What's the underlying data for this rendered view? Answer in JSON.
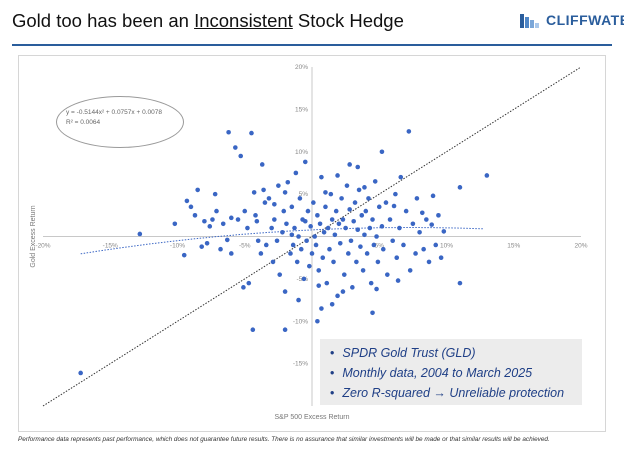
{
  "slide": {
    "title_pre": "Gold too has been an ",
    "title_underlined": "Inconsistent",
    "title_post": " Stock Hedge",
    "logo_text": "CLIFFWATER",
    "logo_icon": "cliffwater-logo-icon",
    "accent_color": "#2a5d9c",
    "point_color": "#3a66c4"
  },
  "callout": {
    "items": [
      "SPDR Gold Trust (GLD)",
      "Monthly data, 2004 to March 2025",
      "Zero R-squared → Unreliable protection"
    ]
  },
  "footnote": "Performance data represents past performance, which does not guarantee future results. There is no assurance that similar investments will be made or that similar results will be achieved.",
  "chart_data": {
    "type": "scatter",
    "xlabel": "S&P 500 Excess Return",
    "ylabel": "Gold Excess Return",
    "xlim": [
      -0.2,
      0.2
    ],
    "ylim": [
      -0.2,
      0.2
    ],
    "x_ticks": [
      -0.2,
      -0.15,
      -0.1,
      -0.05,
      0.05,
      0.1,
      0.15,
      0.2
    ],
    "x_tick_labels": [
      "-20%",
      "-15%",
      "-10%",
      "-5%",
      "5%",
      "10%",
      "15%",
      "20%"
    ],
    "y_ticks": [
      -0.15,
      -0.1,
      -0.05,
      0.05,
      0.1,
      0.15,
      0.2
    ],
    "y_tick_labels": [
      "-15%",
      "-10%",
      "-5%",
      "5%",
      "10%",
      "15%",
      "20%"
    ],
    "grid": false,
    "trendline": {
      "type": "polynomial",
      "a": -0.5144,
      "b": 0.0757,
      "c": 0.0078,
      "equation": "y = -0.5144x² + 0.0757x + 0.0078",
      "r2": "R² = 0.0064",
      "x_range": [
        -0.172,
        0.127
      ]
    },
    "reference_line": {
      "type": "y=x"
    },
    "points": [
      [
        -0.172,
        -0.161
      ],
      [
        -0.128,
        0.003
      ],
      [
        -0.102,
        0.015
      ],
      [
        -0.095,
        -0.022
      ],
      [
        -0.093,
        0.042
      ],
      [
        -0.09,
        0.035
      ],
      [
        -0.087,
        0.025
      ],
      [
        -0.085,
        0.055
      ],
      [
        -0.082,
        -0.012
      ],
      [
        -0.08,
        0.018
      ],
      [
        -0.078,
        -0.008
      ],
      [
        -0.076,
        0.012
      ],
      [
        -0.074,
        0.02
      ],
      [
        -0.071,
        0.03
      ],
      [
        -0.068,
        -0.015
      ],
      [
        -0.066,
        0.015
      ],
      [
        -0.063,
        -0.004
      ],
      [
        -0.062,
        0.123
      ],
      [
        -0.06,
        0.022
      ],
      [
        -0.057,
        0.105
      ],
      [
        -0.055,
        0.02
      ],
      [
        -0.053,
        0.095
      ],
      [
        -0.051,
        -0.06
      ],
      [
        -0.05,
        0.03
      ],
      [
        -0.048,
        0.01
      ],
      [
        -0.047,
        -0.055
      ],
      [
        -0.045,
        0.122
      ],
      [
        -0.044,
        -0.11
      ],
      [
        -0.043,
        0.052
      ],
      [
        -0.042,
        0.025
      ],
      [
        -0.04,
        -0.005
      ],
      [
        -0.038,
        -0.02
      ],
      [
        -0.036,
        0.055
      ],
      [
        -0.035,
        0.04
      ],
      [
        -0.034,
        -0.01
      ],
      [
        -0.032,
        0.045
      ],
      [
        -0.03,
        0.01
      ],
      [
        -0.029,
        -0.03
      ],
      [
        -0.028,
        0.02
      ],
      [
        -0.026,
        -0.005
      ],
      [
        -0.025,
        0.06
      ],
      [
        -0.024,
        -0.045
      ],
      [
        -0.022,
        0.005
      ],
      [
        -0.021,
        0.03
      ],
      [
        -0.02,
        -0.065
      ],
      [
        -0.019,
        0.015
      ],
      [
        -0.018,
        0.064
      ],
      [
        -0.016,
        -0.02
      ],
      [
        -0.015,
        0.035
      ],
      [
        -0.014,
        -0.01
      ],
      [
        -0.013,
        0.01
      ],
      [
        -0.012,
        0.075
      ],
      [
        -0.011,
        -0.03
      ],
      [
        -0.01,
        0.0
      ],
      [
        -0.009,
        0.045
      ],
      [
        -0.008,
        -0.015
      ],
      [
        -0.007,
        0.02
      ],
      [
        -0.006,
        -0.05
      ],
      [
        -0.005,
        0.088
      ],
      [
        -0.004,
        -0.005
      ],
      [
        -0.003,
        0.03
      ],
      [
        -0.002,
        -0.035
      ],
      [
        -0.001,
        0.012
      ],
      [
        0.0,
        -0.02
      ],
      [
        0.001,
        0.04
      ],
      [
        0.002,
        0.0
      ],
      [
        0.003,
        -0.01
      ],
      [
        0.004,
        0.025
      ],
      [
        0.005,
        -0.04
      ],
      [
        0.006,
        0.015
      ],
      [
        0.007,
        0.07
      ],
      [
        0.008,
        -0.025
      ],
      [
        0.009,
        0.005
      ],
      [
        0.01,
        0.035
      ],
      [
        0.011,
        -0.055
      ],
      [
        0.012,
        0.01
      ],
      [
        0.013,
        -0.015
      ],
      [
        0.014,
        0.05
      ],
      [
        0.015,
        0.02
      ],
      [
        0.016,
        -0.03
      ],
      [
        0.017,
        0.002
      ],
      [
        0.018,
        0.03
      ],
      [
        0.019,
        -0.07
      ],
      [
        0.02,
        0.015
      ],
      [
        0.021,
        -0.008
      ],
      [
        0.022,
        0.045
      ],
      [
        0.023,
        0.02
      ],
      [
        0.024,
        -0.045
      ],
      [
        0.025,
        0.01
      ],
      [
        0.026,
        0.06
      ],
      [
        0.027,
        -0.02
      ],
      [
        0.028,
        0.032
      ],
      [
        0.029,
        -0.005
      ],
      [
        0.03,
        -0.06
      ],
      [
        0.031,
        0.018
      ],
      [
        0.032,
        0.04
      ],
      [
        0.033,
        -0.03
      ],
      [
        0.034,
        0.008
      ],
      [
        0.035,
        0.055
      ],
      [
        0.036,
        -0.012
      ],
      [
        0.037,
        0.025
      ],
      [
        0.038,
        -0.04
      ],
      [
        0.039,
        0.002
      ],
      [
        0.04,
        0.03
      ],
      [
        0.041,
        -0.02
      ],
      [
        0.042,
        0.045
      ],
      [
        0.043,
        0.01
      ],
      [
        0.044,
        -0.055
      ],
      [
        0.045,
        0.02
      ],
      [
        0.046,
        -0.01
      ],
      [
        0.047,
        0.065
      ],
      [
        0.048,
        0.0
      ],
      [
        0.049,
        -0.03
      ],
      [
        0.05,
        0.035
      ],
      [
        0.052,
        0.012
      ],
      [
        0.053,
        -0.015
      ],
      [
        0.055,
        0.04
      ],
      [
        0.056,
        -0.045
      ],
      [
        0.058,
        0.02
      ],
      [
        0.06,
        -0.005
      ],
      [
        0.062,
        0.05
      ],
      [
        0.063,
        -0.025
      ],
      [
        0.065,
        0.01
      ],
      [
        0.066,
        0.07
      ],
      [
        0.068,
        -0.01
      ],
      [
        0.07,
        0.03
      ],
      [
        0.072,
        0.124
      ],
      [
        0.073,
        -0.04
      ],
      [
        0.075,
        0.015
      ],
      [
        0.077,
        -0.02
      ],
      [
        0.078,
        0.045
      ],
      [
        0.08,
        0.005
      ],
      [
        0.082,
        0.028
      ],
      [
        0.083,
        -0.015
      ],
      [
        0.085,
        0.02
      ],
      [
        0.087,
        -0.03
      ],
      [
        0.089,
        0.014
      ],
      [
        0.09,
        0.048
      ],
      [
        0.092,
        -0.01
      ],
      [
        0.094,
        0.025
      ],
      [
        0.096,
        -0.025
      ],
      [
        0.098,
        0.006
      ],
      [
        0.11,
        0.058
      ],
      [
        0.11,
        -0.055
      ],
      [
        0.13,
        0.072
      ],
      [
        -0.06,
        -0.02
      ],
      [
        -0.072,
        0.05
      ],
      [
        -0.02,
        0.052
      ],
      [
        0.015,
        -0.08
      ],
      [
        0.004,
        -0.1
      ],
      [
        -0.02,
        -0.11
      ],
      [
        0.045,
        -0.09
      ],
      [
        -0.01,
        -0.075
      ],
      [
        0.028,
        0.085
      ],
      [
        0.052,
        0.1
      ],
      [
        0.034,
        0.082
      ],
      [
        -0.037,
        0.085
      ],
      [
        0.01,
        0.052
      ],
      [
        0.005,
        -0.058
      ],
      [
        0.019,
        0.072
      ],
      [
        -0.041,
        0.018
      ],
      [
        0.061,
        0.036
      ],
      [
        -0.028,
        0.038
      ],
      [
        0.048,
        -0.062
      ],
      [
        0.064,
        -0.052
      ],
      [
        0.039,
        0.058
      ],
      [
        0.007,
        -0.085
      ],
      [
        -0.015,
        0.002
      ],
      [
        0.023,
        -0.065
      ],
      [
        -0.005,
        0.018
      ]
    ]
  }
}
